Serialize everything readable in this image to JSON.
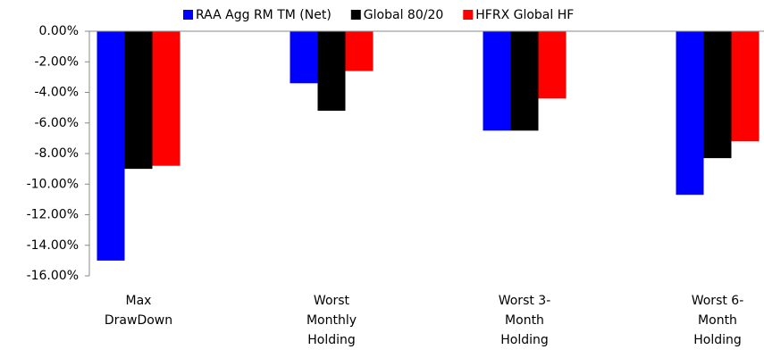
{
  "chart_data": {
    "type": "bar",
    "categories": [
      [
        "Max",
        "DrawDown"
      ],
      [
        "Worst",
        "Monthly",
        "Holding"
      ],
      [
        "Worst 3-",
        "Month",
        "Holding"
      ],
      [
        "Worst 6-",
        "Month",
        "Holding"
      ]
    ],
    "series": [
      {
        "name": "RAA Agg RM TM (Net)",
        "color": "#0000ff",
        "values": [
          -15.0,
          -3.4,
          -6.5,
          -10.7
        ]
      },
      {
        "name": "Global 80/20",
        "color": "#000000",
        "values": [
          -9.0,
          -5.2,
          -6.5,
          -8.3
        ]
      },
      {
        "name": "HFRX Global HF",
        "color": "#ff0000",
        "values": [
          -8.8,
          -2.6,
          -4.4,
          -7.2
        ]
      }
    ],
    "ylim": [
      -16,
      0
    ],
    "yticks": [
      {
        "value": 0,
        "label": "0.00%"
      },
      {
        "value": -2,
        "label": "-2.00%"
      },
      {
        "value": -4,
        "label": "-4.00%"
      },
      {
        "value": -6,
        "label": "-6.00%"
      },
      {
        "value": -8,
        "label": "-8.00%"
      },
      {
        "value": -10,
        "label": "-10.00%"
      },
      {
        "value": -12,
        "label": "-12.00%"
      },
      {
        "value": -14,
        "label": "-14.00%"
      },
      {
        "value": -16,
        "label": "-16.00%"
      }
    ],
    "legend": "top"
  }
}
